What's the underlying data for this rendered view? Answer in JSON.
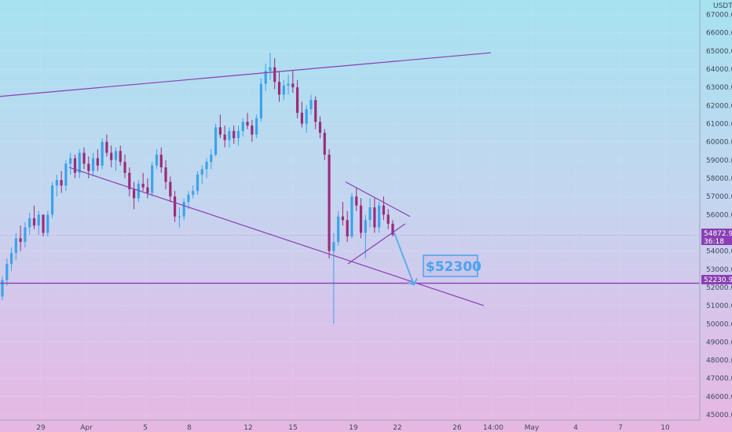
{
  "chart_data": {
    "type": "candlestick",
    "symbol_unit": "USDT",
    "ylim": [
      44700,
      67800
    ],
    "y_ticks": [
      45000,
      46000,
      47000,
      48000,
      49000,
      50000,
      51000,
      52000,
      53000,
      54000,
      55000,
      56000,
      57000,
      58000,
      59000,
      60000,
      61000,
      62000,
      63000,
      64000,
      65000,
      66000,
      67000
    ],
    "x_ticks": [
      "29",
      "Apr",
      "5",
      "8",
      "12",
      "15",
      "19",
      "22",
      "26",
      "14:00",
      "May",
      "4",
      "7",
      "10"
    ],
    "price_tag": {
      "value": "54872.90",
      "countdown": "36:18"
    },
    "level_tag": {
      "value": "52230.92"
    },
    "annotation": "$52300",
    "candles_ohlc": [
      [
        51500,
        52600,
        51300,
        52400
      ],
      [
        52400,
        53600,
        52100,
        53300
      ],
      [
        53300,
        54200,
        52900,
        53900
      ],
      [
        53900,
        55000,
        53500,
        54700
      ],
      [
        54700,
        55400,
        54000,
        54500
      ],
      [
        54500,
        55600,
        54200,
        55300
      ],
      [
        55300,
        56100,
        54900,
        55800
      ],
      [
        55800,
        56500,
        55200,
        55400
      ],
      [
        55400,
        56200,
        54900,
        56000
      ],
      [
        56000,
        56000,
        54800,
        55000
      ],
      [
        55000,
        56200,
        54800,
        56000
      ],
      [
        56000,
        57800,
        55800,
        57600
      ],
      [
        57600,
        58200,
        57000,
        57900
      ],
      [
        57900,
        58400,
        57200,
        57600
      ],
      [
        57600,
        59000,
        57300,
        58800
      ],
      [
        58800,
        59400,
        58200,
        59100
      ],
      [
        59100,
        59300,
        58000,
        58300
      ],
      [
        58300,
        59600,
        58000,
        59400
      ],
      [
        59400,
        59700,
        58500,
        58800
      ],
      [
        58800,
        59200,
        58000,
        58400
      ],
      [
        58400,
        59400,
        58100,
        59100
      ],
      [
        59100,
        59600,
        58400,
        58700
      ],
      [
        58700,
        60200,
        58500,
        60000
      ],
      [
        60000,
        60400,
        59200,
        59400
      ],
      [
        59400,
        59800,
        58600,
        59000
      ],
      [
        59000,
        59700,
        58400,
        59500
      ],
      [
        59500,
        59800,
        58700,
        58900
      ],
      [
        58900,
        59300,
        58000,
        58300
      ],
      [
        58300,
        58600,
        57000,
        57400
      ],
      [
        57400,
        57800,
        56300,
        56900
      ],
      [
        56900,
        57900,
        56700,
        57700
      ],
      [
        57700,
        58300,
        57300,
        57500
      ],
      [
        57500,
        58000,
        56900,
        57200
      ],
      [
        57200,
        58900,
        57000,
        58700
      ],
      [
        58700,
        59600,
        58500,
        59300
      ],
      [
        59300,
        59700,
        58300,
        58600
      ],
      [
        58600,
        59000,
        57400,
        57800
      ],
      [
        57800,
        58100,
        56700,
        57000
      ],
      [
        57000,
        57300,
        55600,
        55900
      ],
      [
        55900,
        56400,
        55300,
        55900
      ],
      [
        55900,
        56900,
        55700,
        56700
      ],
      [
        56700,
        57300,
        56300,
        57100
      ],
      [
        57100,
        57600,
        56900,
        57300
      ],
      [
        57300,
        58400,
        57100,
        58200
      ],
      [
        58200,
        58700,
        57700,
        58500
      ],
      [
        58500,
        59100,
        58000,
        58900
      ],
      [
        58900,
        59600,
        58500,
        59300
      ],
      [
        59300,
        61000,
        59200,
        60800
      ],
      [
        60800,
        61500,
        60200,
        60400
      ],
      [
        60400,
        60900,
        59700,
        60100
      ],
      [
        60100,
        60800,
        59700,
        60600
      ],
      [
        60600,
        60900,
        59900,
        60200
      ],
      [
        60200,
        60900,
        59800,
        60600
      ],
      [
        60600,
        61300,
        60300,
        61100
      ],
      [
        61100,
        61600,
        60700,
        60900
      ],
      [
        60900,
        61200,
        60000,
        60400
      ],
      [
        60400,
        61500,
        60200,
        61300
      ],
      [
        61300,
        63500,
        61100,
        63200
      ],
      [
        63200,
        64300,
        62800,
        63900
      ],
      [
        63900,
        64900,
        63400,
        64100
      ],
      [
        64100,
        64600,
        62900,
        63300
      ],
      [
        63300,
        63900,
        62200,
        62600
      ],
      [
        62600,
        63400,
        62300,
        63100
      ],
      [
        63100,
        63700,
        62600,
        63200
      ],
      [
        63200,
        63900,
        62700,
        63000
      ],
      [
        63000,
        63400,
        61300,
        61600
      ],
      [
        61600,
        62200,
        60800,
        61000
      ],
      [
        61000,
        62000,
        60500,
        61800
      ],
      [
        61800,
        62600,
        61500,
        62300
      ],
      [
        62300,
        62500,
        60700,
        61100
      ],
      [
        61100,
        61400,
        60200,
        60500
      ],
      [
        60500,
        60700,
        59000,
        59300
      ],
      [
        59300,
        59600,
        53600,
        54000
      ],
      [
        54000,
        55000,
        50000,
        54500
      ],
      [
        54500,
        56200,
        54300,
        55900
      ],
      [
        55900,
        56700,
        55400,
        55700
      ],
      [
        55700,
        56200,
        54500,
        54800
      ],
      [
        54800,
        57200,
        54700,
        57000
      ],
      [
        57000,
        57500,
        56200,
        56500
      ],
      [
        56500,
        56900,
        54700,
        55000
      ],
      [
        55000,
        56000,
        53600,
        55700
      ],
      [
        55700,
        56900,
        55300,
        56400
      ],
      [
        56400,
        56900,
        55000,
        55300
      ],
      [
        55300,
        56700,
        55000,
        56500
      ],
      [
        56500,
        57000,
        55700,
        56000
      ],
      [
        56000,
        56300,
        55200,
        55500
      ],
      [
        55500,
        55700,
        54800,
        54900
      ]
    ],
    "trendlines": [
      {
        "name": "upper-resistance",
        "from": [
          "start",
          62500
        ],
        "to": [
          "late-apr",
          64900
        ]
      },
      {
        "name": "descending-support",
        "from": [
          "apr",
          58600
        ],
        "to": [
          "after-22",
          51000
        ]
      },
      {
        "name": "triangle-upper",
        "from": [
          "18",
          57700
        ],
        "to": [
          "22",
          55900
        ]
      },
      {
        "name": "triangle-lower",
        "from": [
          "18",
          53300
        ],
        "to": [
          "22",
          55500
        ]
      }
    ],
    "horizontal_level": 52230.92,
    "accent_colors": {
      "bull": "#3aa3ec",
      "bear": "#9c2a7a",
      "line": "#8a3fb5",
      "arrow": "#5aaef0",
      "tag_price": "#8a3fb5",
      "tag_level": "#8a3fb5"
    }
  }
}
